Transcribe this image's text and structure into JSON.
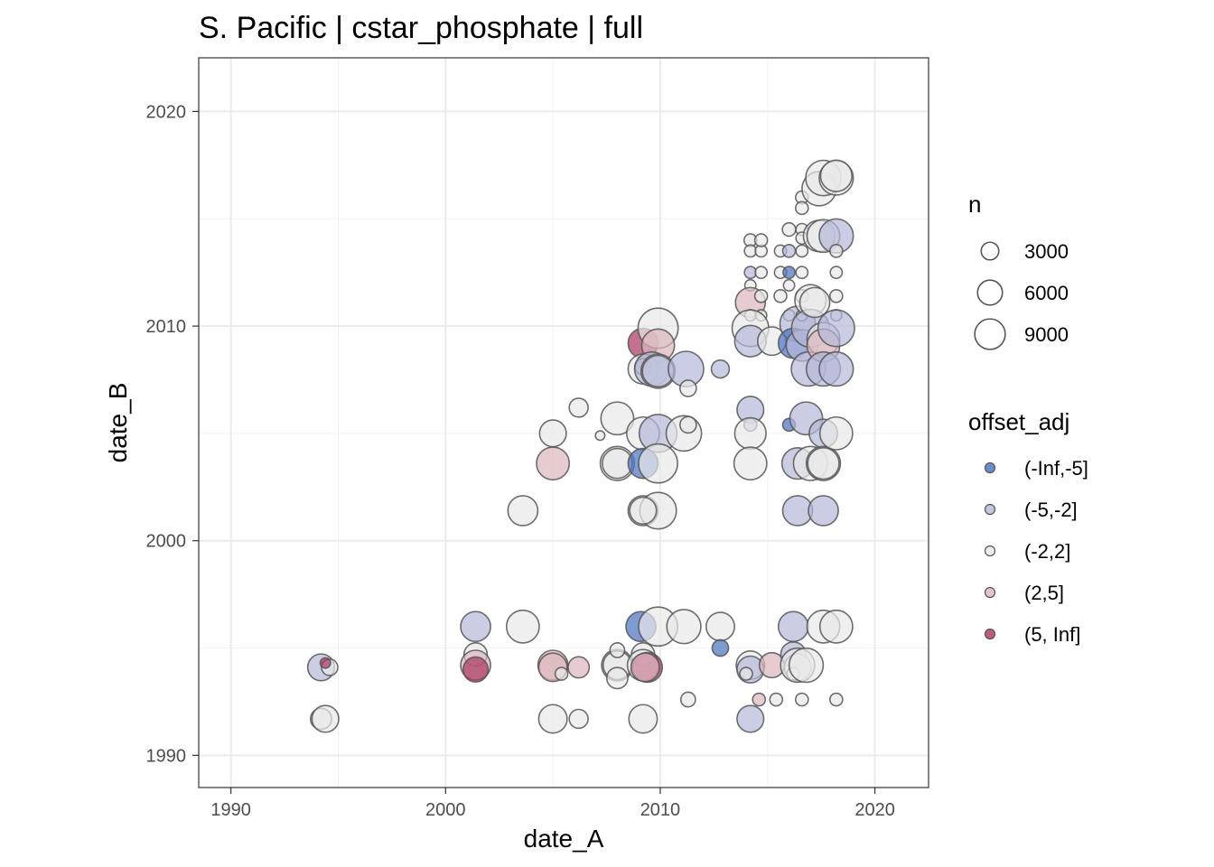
{
  "chart_data": {
    "type": "scatter",
    "title": "S. Pacific | cstar_phosphate | full",
    "xlabel": "date_A",
    "ylabel": "date_B",
    "xlim": [
      1988.5,
      2022.5
    ],
    "ylim": [
      1988.5,
      2022.5
    ],
    "x_ticks": [
      1990,
      2000,
      2010,
      2020
    ],
    "y_ticks": [
      1990,
      2000,
      2010,
      2020
    ],
    "x_tick_labels": [
      "1990",
      "2000",
      "2010",
      "2020"
    ],
    "y_tick_labels": [
      "1990",
      "2000",
      "2010",
      "2020"
    ],
    "grid": true,
    "size_legend": {
      "title": "n",
      "entries": [
        {
          "label": "3000",
          "value": 3000
        },
        {
          "label": "6000",
          "value": 6000
        },
        {
          "label": "9000",
          "value": 9000
        }
      ]
    },
    "color_legend": {
      "title": "offset_adj",
      "entries": [
        {
          "label": "(-Inf,-5]",
          "color": "#4a6fbf"
        },
        {
          "label": "(-5,-2]",
          "color": "#b5b8d8"
        },
        {
          "label": "(-2,2]",
          "color": "#e8e8e8"
        },
        {
          "label": "(2,5]",
          "color": "#dbb6bd"
        },
        {
          "label": "(5, Inf]",
          "color": "#a8365f"
        }
      ]
    },
    "legend_position": "right",
    "points": [
      {
        "x": 1994.2,
        "y": 1994.1,
        "n": 4000,
        "c": "(-5,-2]"
      },
      {
        "x": 1994.6,
        "y": 1994.1,
        "n": 1500,
        "c": "(-2,2]"
      },
      {
        "x": 1994.4,
        "y": 1994.3,
        "n": 600,
        "c": "(5, Inf]"
      },
      {
        "x": 1994.2,
        "y": 1991.7,
        "n": 2500,
        "c": "(-2,2]"
      },
      {
        "x": 1994.4,
        "y": 1991.7,
        "n": 4000,
        "c": "(-2,2]"
      },
      {
        "x": 2001.4,
        "y": 1996.0,
        "n": 5000,
        "c": "(-5,-2]"
      },
      {
        "x": 2001.4,
        "y": 1994.7,
        "n": 3000,
        "c": "(-2,2]"
      },
      {
        "x": 2001.4,
        "y": 1994.2,
        "n": 5000,
        "c": "(2,5]"
      },
      {
        "x": 2001.4,
        "y": 1994.0,
        "n": 3500,
        "c": "(5, Inf]"
      },
      {
        "x": 2003.6,
        "y": 2001.4,
        "n": 5000,
        "c": "(-2,2]"
      },
      {
        "x": 2003.6,
        "y": 1996.0,
        "n": 6000,
        "c": "(-2,2]"
      },
      {
        "x": 2005.0,
        "y": 2003.6,
        "n": 6000,
        "c": "(2,5]"
      },
      {
        "x": 2005.0,
        "y": 2005.0,
        "n": 4000,
        "c": "(-2,2]"
      },
      {
        "x": 2006.2,
        "y": 2006.2,
        "n": 2000,
        "c": "(-2,2]"
      },
      {
        "x": 2007.2,
        "y": 2004.9,
        "n": 500,
        "c": "(-2,2]"
      },
      {
        "x": 2005.0,
        "y": 1994.2,
        "n": 5000,
        "c": "(2,5]"
      },
      {
        "x": 2005.0,
        "y": 1994.1,
        "n": 4500,
        "c": "(2,5]"
      },
      {
        "x": 2005.4,
        "y": 1993.8,
        "n": 900,
        "c": "(-2,2]"
      },
      {
        "x": 2006.2,
        "y": 1994.1,
        "n": 2500,
        "c": "(2,5]"
      },
      {
        "x": 2005.0,
        "y": 1991.7,
        "n": 4500,
        "c": "(-2,2]"
      },
      {
        "x": 2006.2,
        "y": 1991.7,
        "n": 2000,
        "c": "(-2,2]"
      },
      {
        "x": 2008.0,
        "y": 2005.7,
        "n": 6000,
        "c": "(-2,2]"
      },
      {
        "x": 2008.0,
        "y": 2003.6,
        "n": 6500,
        "c": "(-2,2]"
      },
      {
        "x": 2008.0,
        "y": 2003.6,
        "n": 5000,
        "c": "(-2,2]"
      },
      {
        "x": 2008.0,
        "y": 1994.2,
        "n": 5500,
        "c": "(-2,2]"
      },
      {
        "x": 2008.0,
        "y": 1994.2,
        "n": 4500,
        "c": "(-2,2]"
      },
      {
        "x": 2008.0,
        "y": 1994.9,
        "n": 1200,
        "c": "(-2,2]"
      },
      {
        "x": 2008.0,
        "y": 1993.6,
        "n": 2500,
        "c": "(-2,2]"
      },
      {
        "x": 2009.2,
        "y": 2009.2,
        "n": 5000,
        "c": "(5, Inf]"
      },
      {
        "x": 2009.9,
        "y": 2009.9,
        "n": 9000,
        "c": "(-2,2]"
      },
      {
        "x": 2009.9,
        "y": 2009.1,
        "n": 6000,
        "c": "(2,5]"
      },
      {
        "x": 2009.2,
        "y": 2008.0,
        "n": 5000,
        "c": "(-2,2]"
      },
      {
        "x": 2009.2,
        "y": 2008.1,
        "n": 1500,
        "c": "(-5,-2]"
      },
      {
        "x": 2009.6,
        "y": 2008.0,
        "n": 6500,
        "c": "(-5,-2]"
      },
      {
        "x": 2009.9,
        "y": 2007.9,
        "n": 6500,
        "c": "(-2,2]"
      },
      {
        "x": 2009.9,
        "y": 2007.9,
        "n": 5500,
        "c": "(-5,-2]"
      },
      {
        "x": 2011.2,
        "y": 2008.0,
        "n": 7000,
        "c": "(-5,-2]"
      },
      {
        "x": 2011.3,
        "y": 2007.1,
        "n": 1500,
        "c": "(-2,2]"
      },
      {
        "x": 2009.2,
        "y": 2005.0,
        "n": 6000,
        "c": "(-2,2]"
      },
      {
        "x": 2009.9,
        "y": 2005.0,
        "n": 8000,
        "c": "(-5,-2]"
      },
      {
        "x": 2011.1,
        "y": 2005.0,
        "n": 7000,
        "c": "(-2,2]"
      },
      {
        "x": 2011.3,
        "y": 2005.4,
        "n": 1500,
        "c": "(-2,2]"
      },
      {
        "x": 2009.2,
        "y": 2003.6,
        "n": 5000,
        "c": "(-inf,-5]"
      },
      {
        "x": 2009.9,
        "y": 2003.6,
        "n": 8500,
        "c": "(-2,2]"
      },
      {
        "x": 2009.2,
        "y": 2001.4,
        "n": 5000,
        "c": "(-2,2]"
      },
      {
        "x": 2009.9,
        "y": 2001.4,
        "n": 7500,
        "c": "(-2,2]"
      },
      {
        "x": 2009.2,
        "y": 2001.4,
        "n": 4000,
        "c": "(-2,2]"
      },
      {
        "x": 2009.1,
        "y": 1996.0,
        "n": 5000,
        "c": "(-inf,-5]"
      },
      {
        "x": 2009.9,
        "y": 1996.0,
        "n": 8500,
        "c": "(-2,2]"
      },
      {
        "x": 2011.1,
        "y": 1996.0,
        "n": 6500,
        "c": "(-2,2]"
      },
      {
        "x": 2009.2,
        "y": 1994.7,
        "n": 3000,
        "c": "(-2,2]"
      },
      {
        "x": 2009.2,
        "y": 1994.2,
        "n": 5500,
        "c": "(-2,2]"
      },
      {
        "x": 2009.4,
        "y": 1994.1,
        "n": 5000,
        "c": "(5, Inf]"
      },
      {
        "x": 2009.3,
        "y": 1994.1,
        "n": 4500,
        "c": "(2,5]"
      },
      {
        "x": 2009.2,
        "y": 1991.7,
        "n": 4500,
        "c": "(-2,2]"
      },
      {
        "x": 2011.3,
        "y": 1992.6,
        "n": 1200,
        "c": "(-2,2]"
      },
      {
        "x": 2012.8,
        "y": 2008.0,
        "n": 1800,
        "c": "(-5,-2]"
      },
      {
        "x": 2012.8,
        "y": 1996.0,
        "n": 4500,
        "c": "(-2,2]"
      },
      {
        "x": 2012.8,
        "y": 1995.0,
        "n": 1500,
        "c": "(-inf,-5]"
      },
      {
        "x": 2014.2,
        "y": 2014.0,
        "n": 900,
        "c": "(-2,2]"
      },
      {
        "x": 2014.2,
        "y": 2013.5,
        "n": 800,
        "c": "(-2,2]"
      },
      {
        "x": 2014.7,
        "y": 2013.5,
        "n": 800,
        "c": "(-2,2]"
      },
      {
        "x": 2014.7,
        "y": 2014.0,
        "n": 900,
        "c": "(-2,2]"
      },
      {
        "x": 2014.2,
        "y": 2012.5,
        "n": 800,
        "c": "(-5,-2]"
      },
      {
        "x": 2014.7,
        "y": 2012.5,
        "n": 800,
        "c": "(-2,2]"
      },
      {
        "x": 2014.2,
        "y": 2011.9,
        "n": 700,
        "c": "(-2,2]"
      },
      {
        "x": 2014.2,
        "y": 2011.1,
        "n": 5000,
        "c": "(2,5]"
      },
      {
        "x": 2014.7,
        "y": 2011.4,
        "n": 900,
        "c": "(-2,2]"
      },
      {
        "x": 2014.2,
        "y": 2010.5,
        "n": 700,
        "c": "(-2,2]"
      },
      {
        "x": 2014.7,
        "y": 2010.5,
        "n": 700,
        "c": "(-2,2]"
      },
      {
        "x": 2014.2,
        "y": 2009.9,
        "n": 7500,
        "c": "(-2,2]"
      },
      {
        "x": 2014.2,
        "y": 2009.3,
        "n": 5500,
        "c": "(-5,-2]"
      },
      {
        "x": 2015.2,
        "y": 2009.3,
        "n": 4500,
        "c": "(-2,2]"
      },
      {
        "x": 2014.2,
        "y": 2006.1,
        "n": 4000,
        "c": "(-5,-2]"
      },
      {
        "x": 2014.2,
        "y": 2005.4,
        "n": 900,
        "c": "(-5,-2]"
      },
      {
        "x": 2014.2,
        "y": 2005.0,
        "n": 5500,
        "c": "(-2,2]"
      },
      {
        "x": 2014.2,
        "y": 2003.6,
        "n": 6000,
        "c": "(-2,2]"
      },
      {
        "x": 2014.2,
        "y": 1994.2,
        "n": 4500,
        "c": "(-2,2]"
      },
      {
        "x": 2014.2,
        "y": 1994.0,
        "n": 4000,
        "c": "(-5,-2]"
      },
      {
        "x": 2014.0,
        "y": 1993.8,
        "n": 900,
        "c": "(-2,2]"
      },
      {
        "x": 2015.2,
        "y": 1994.2,
        "n": 3500,
        "c": "(2,5]"
      },
      {
        "x": 2014.2,
        "y": 1991.7,
        "n": 4000,
        "c": "(-5,-2]"
      },
      {
        "x": 2014.6,
        "y": 1992.6,
        "n": 900,
        "c": "(2,5]"
      },
      {
        "x": 2015.4,
        "y": 1992.6,
        "n": 900,
        "c": "(-2,2]"
      },
      {
        "x": 2015.6,
        "y": 2013.5,
        "n": 800,
        "c": "(-2,2]"
      },
      {
        "x": 2015.6,
        "y": 2012.5,
        "n": 800,
        "c": "(-2,2]"
      },
      {
        "x": 2015.6,
        "y": 2011.4,
        "n": 900,
        "c": "(-2,2]"
      },
      {
        "x": 2016.0,
        "y": 2014.5,
        "n": 1000,
        "c": "(-2,2]"
      },
      {
        "x": 2016.0,
        "y": 2013.5,
        "n": 900,
        "c": "(-5,-2]"
      },
      {
        "x": 2016.0,
        "y": 2012.5,
        "n": 800,
        "c": "(-inf,-5]"
      },
      {
        "x": 2016.0,
        "y": 2011.9,
        "n": 700,
        "c": "(-2,2]"
      },
      {
        "x": 2016.0,
        "y": 2010.5,
        "n": 700,
        "c": "(-2,2]"
      },
      {
        "x": 2016.4,
        "y": 2010.1,
        "n": 7000,
        "c": "(-5,-2]"
      },
      {
        "x": 2016.2,
        "y": 2009.2,
        "n": 5000,
        "c": "(-inf,-5]"
      },
      {
        "x": 2016.6,
        "y": 2009.1,
        "n": 5500,
        "c": "(-5,-2]"
      },
      {
        "x": 2016.0,
        "y": 2005.4,
        "n": 900,
        "c": "(-inf,-5]"
      },
      {
        "x": 2016.4,
        "y": 2003.6,
        "n": 5500,
        "c": "(-5,-2]"
      },
      {
        "x": 2016.4,
        "y": 2001.4,
        "n": 5000,
        "c": "(-5,-2]"
      },
      {
        "x": 2016.2,
        "y": 1996.0,
        "n": 5000,
        "c": "(-5,-2]"
      },
      {
        "x": 2016.2,
        "y": 1994.7,
        "n": 3500,
        "c": "(-5,-2]"
      },
      {
        "x": 2016.4,
        "y": 1994.1,
        "n": 4000,
        "c": "(-2,2]"
      },
      {
        "x": 2016.2,
        "y": 1993.8,
        "n": 900,
        "c": "(-2,2]"
      },
      {
        "x": 2016.4,
        "y": 1994.2,
        "n": 6500,
        "c": "(-2,2]"
      },
      {
        "x": 2016.6,
        "y": 2016.0,
        "n": 900,
        "c": "(-2,2]"
      },
      {
        "x": 2016.6,
        "y": 2015.5,
        "n": 900,
        "c": "(-2,2]"
      },
      {
        "x": 2016.6,
        "y": 2014.5,
        "n": 800,
        "c": "(-2,2]"
      },
      {
        "x": 2016.6,
        "y": 2014.1,
        "n": 800,
        "c": "(-2,2]"
      },
      {
        "x": 2016.6,
        "y": 2013.5,
        "n": 800,
        "c": "(-2,2]"
      },
      {
        "x": 2016.6,
        "y": 2012.5,
        "n": 800,
        "c": "(-2,2]"
      },
      {
        "x": 2016.6,
        "y": 2011.4,
        "n": 900,
        "c": "(-2,2]"
      },
      {
        "x": 2016.6,
        "y": 2010.5,
        "n": 700,
        "c": "(-2,2]"
      },
      {
        "x": 2016.6,
        "y": 1992.6,
        "n": 900,
        "c": "(-2,2]"
      },
      {
        "x": 2016.8,
        "y": 2005.7,
        "n": 6000,
        "c": "(-5,-2]"
      },
      {
        "x": 2016.9,
        "y": 2008.0,
        "n": 6500,
        "c": "(-5,-2]"
      },
      {
        "x": 2017.0,
        "y": 2011.2,
        "n": 5500,
        "c": "(-2,2]"
      },
      {
        "x": 2017.0,
        "y": 2009.9,
        "n": 8000,
        "c": "(-5,-2]"
      },
      {
        "x": 2017.0,
        "y": 2003.6,
        "n": 6500,
        "c": "(-2,2]"
      },
      {
        "x": 2016.8,
        "y": 1994.2,
        "n": 6500,
        "c": "(-2,2]"
      },
      {
        "x": 2017.2,
        "y": 2011.1,
        "n": 5000,
        "c": "(-2,2]"
      },
      {
        "x": 2017.4,
        "y": 2016.4,
        "n": 6500,
        "c": "(-2,2]"
      },
      {
        "x": 2017.6,
        "y": 2016.9,
        "n": 7000,
        "c": "(-2,2]"
      },
      {
        "x": 2017.4,
        "y": 2014.2,
        "n": 5500,
        "c": "(-2,2]"
      },
      {
        "x": 2017.6,
        "y": 2014.2,
        "n": 6000,
        "c": "(-2,2]"
      },
      {
        "x": 2017.6,
        "y": 2009.4,
        "n": 6000,
        "c": "(-2,2]"
      },
      {
        "x": 2017.6,
        "y": 2009.1,
        "n": 6000,
        "c": "(2,5]"
      },
      {
        "x": 2017.6,
        "y": 2008.0,
        "n": 6500,
        "c": "(-5,-2]"
      },
      {
        "x": 2017.6,
        "y": 2005.0,
        "n": 4500,
        "c": "(-5,-2]"
      },
      {
        "x": 2017.6,
        "y": 2003.6,
        "n": 6500,
        "c": "(-2,2]"
      },
      {
        "x": 2017.6,
        "y": 2003.6,
        "n": 5500,
        "c": "(-2,2]"
      },
      {
        "x": 2017.6,
        "y": 2001.4,
        "n": 5000,
        "c": "(-5,-2]"
      },
      {
        "x": 2017.6,
        "y": 1996.0,
        "n": 6000,
        "c": "(-2,2]"
      },
      {
        "x": 2018.2,
        "y": 2016.9,
        "n": 6500,
        "c": "(-2,2]"
      },
      {
        "x": 2018.2,
        "y": 2017.0,
        "n": 5500,
        "c": "(-2,2]"
      },
      {
        "x": 2018.2,
        "y": 2014.2,
        "n": 6500,
        "c": "(-5,-2]"
      },
      {
        "x": 2018.2,
        "y": 2013.5,
        "n": 900,
        "c": "(-2,2]"
      },
      {
        "x": 2018.2,
        "y": 2012.5,
        "n": 800,
        "c": "(-2,2]"
      },
      {
        "x": 2018.2,
        "y": 2011.4,
        "n": 900,
        "c": "(-2,2]"
      },
      {
        "x": 2018.2,
        "y": 2010.5,
        "n": 700,
        "c": "(-2,2]"
      },
      {
        "x": 2018.2,
        "y": 2009.9,
        "n": 7500,
        "c": "(-5,-2]"
      },
      {
        "x": 2018.2,
        "y": 2008.0,
        "n": 6500,
        "c": "(-5,-2]"
      },
      {
        "x": 2018.2,
        "y": 2005.0,
        "n": 6000,
        "c": "(-2,2]"
      },
      {
        "x": 2018.2,
        "y": 1996.0,
        "n": 6000,
        "c": "(-2,2]"
      },
      {
        "x": 2018.2,
        "y": 1992.6,
        "n": 900,
        "c": "(-2,2]"
      }
    ]
  }
}
